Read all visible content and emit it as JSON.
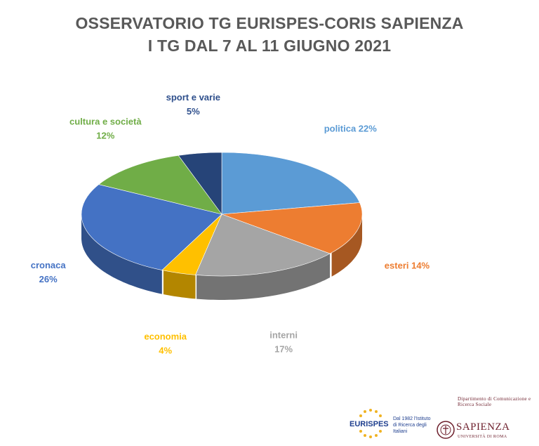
{
  "title_line1": "OSSERVATORIO TG EURISPES-CORIS SAPIENZA",
  "title_line2": "I TG DAL 7 AL 11 GIUGNO 2021",
  "chart_data": {
    "type": "pie",
    "title": "OSSERVATORIO TG EURISPES-CORIS SAPIENZA I TG DAL 7 AL 11 GIUGNO 2021",
    "slices": [
      {
        "label": "politica",
        "value": 22,
        "pct_text": "22%",
        "color": "#5b9bd5"
      },
      {
        "label": "esteri",
        "value": 14,
        "pct_text": "14%",
        "color": "#ed7d31"
      },
      {
        "label": "interni",
        "value": 17,
        "pct_text": "17%",
        "color": "#a5a5a5"
      },
      {
        "label": "economia",
        "value": 4,
        "pct_text": "4%",
        "color": "#ffc000"
      },
      {
        "label": "cronaca",
        "value": 26,
        "pct_text": "26%",
        "color": "#4472c4"
      },
      {
        "label": "cultura e società",
        "value": 12,
        "pct_text": "12%",
        "color": "#70ad47"
      },
      {
        "label": "sport e varie",
        "value": 5,
        "pct_text": "5%",
        "color": "#264478"
      }
    ],
    "legend": "none"
  },
  "logos": {
    "eurispes": {
      "name": "EURISPES",
      "tagline": "Dal 1982 l'Istituto di Ricerca degli Italiani"
    },
    "sapienza": {
      "department": "Dipartimento di Comunicazione e Ricerca Sociale",
      "name": "SAPIENZA",
      "university": "UNIVERSITÀ DI ROMA"
    }
  }
}
